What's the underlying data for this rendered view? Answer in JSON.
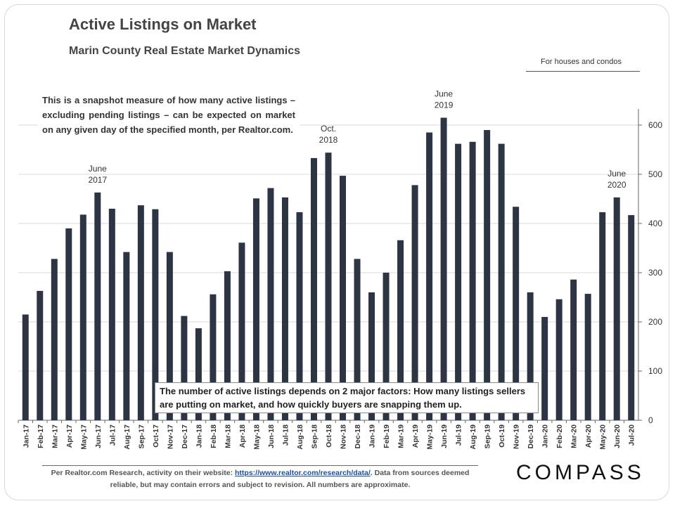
{
  "title": "Active Listings on Market",
  "subtitle": "Marin County Real Estate Market Dynamics",
  "note": "For houses and condos",
  "description": "This is a snapshot measure of how many active listings – excluding pending listings – can be expected on market on any given day of the specified month, per Realtor.com.",
  "factors_text": "The number of active listings depends on 2 major factors: How many listings sellers are putting on market, and how quickly buyers are snapping them up.",
  "footer": {
    "prefix": "Per Realtor.com Research, activity on their website:",
    "link": "https://www.realtor.com/research/data/",
    "suffix": ". Data from sources deemed reliable, but may contain errors and subject to revision. All numbers are approximate."
  },
  "logo": "COMPASS",
  "colors": {
    "bar": "#2d3545",
    "grid": "#d9d9d9",
    "axis": "#666666"
  },
  "chart_data": {
    "type": "bar",
    "title": "Active Listings on Market",
    "subtitle": "Marin County Real Estate Market Dynamics",
    "xlabel": "",
    "ylabel": "",
    "ylim": [
      0,
      640
    ],
    "yticks": [
      0,
      100,
      200,
      300,
      400,
      500,
      600
    ],
    "y_axis_side": "right",
    "grid": true,
    "categories": [
      "Jan-17",
      "Feb-17",
      "Mar-17",
      "Apr-17",
      "May-17",
      "Jun-17",
      "Jul-17",
      "Aug-17",
      "Sep-17",
      "Oct-17",
      "Nov-17",
      "Dec-17",
      "Jan-18",
      "Feb-18",
      "Mar-18",
      "Apr-18",
      "May-18",
      "Jun-18",
      "Jul-18",
      "Aug-18",
      "Sep-18",
      "Oct-18",
      "Nov-18",
      "Dec-18",
      "Jan-19",
      "Feb-19",
      "Mar-19",
      "Apr-19",
      "May-19",
      "Jun-19",
      "Jul-19",
      "Aug-19",
      "Sep-19",
      "Oct-19",
      "Nov-19",
      "Dec-19",
      "Jan-20",
      "Feb-20",
      "Mar-20",
      "Apr-20",
      "May-20",
      "Jun-20",
      "Jul-20"
    ],
    "values": [
      215,
      263,
      328,
      390,
      418,
      463,
      430,
      342,
      437,
      429,
      342,
      212,
      187,
      256,
      303,
      361,
      451,
      472,
      453,
      423,
      533,
      544,
      497,
      328,
      260,
      300,
      366,
      478,
      585,
      615,
      562,
      566,
      590,
      562,
      434,
      260,
      210,
      246,
      286,
      257,
      423,
      453,
      417
    ],
    "annotations": [
      {
        "category": "Jun-17",
        "line1": "June",
        "line2": "2017"
      },
      {
        "category": "Oct-18",
        "line1": "Oct.",
        "line2": "2018"
      },
      {
        "category": "Jun-19",
        "line1": "June",
        "line2": "2019"
      },
      {
        "category": "Jun-20",
        "line1": "June",
        "line2": "2020"
      }
    ]
  }
}
